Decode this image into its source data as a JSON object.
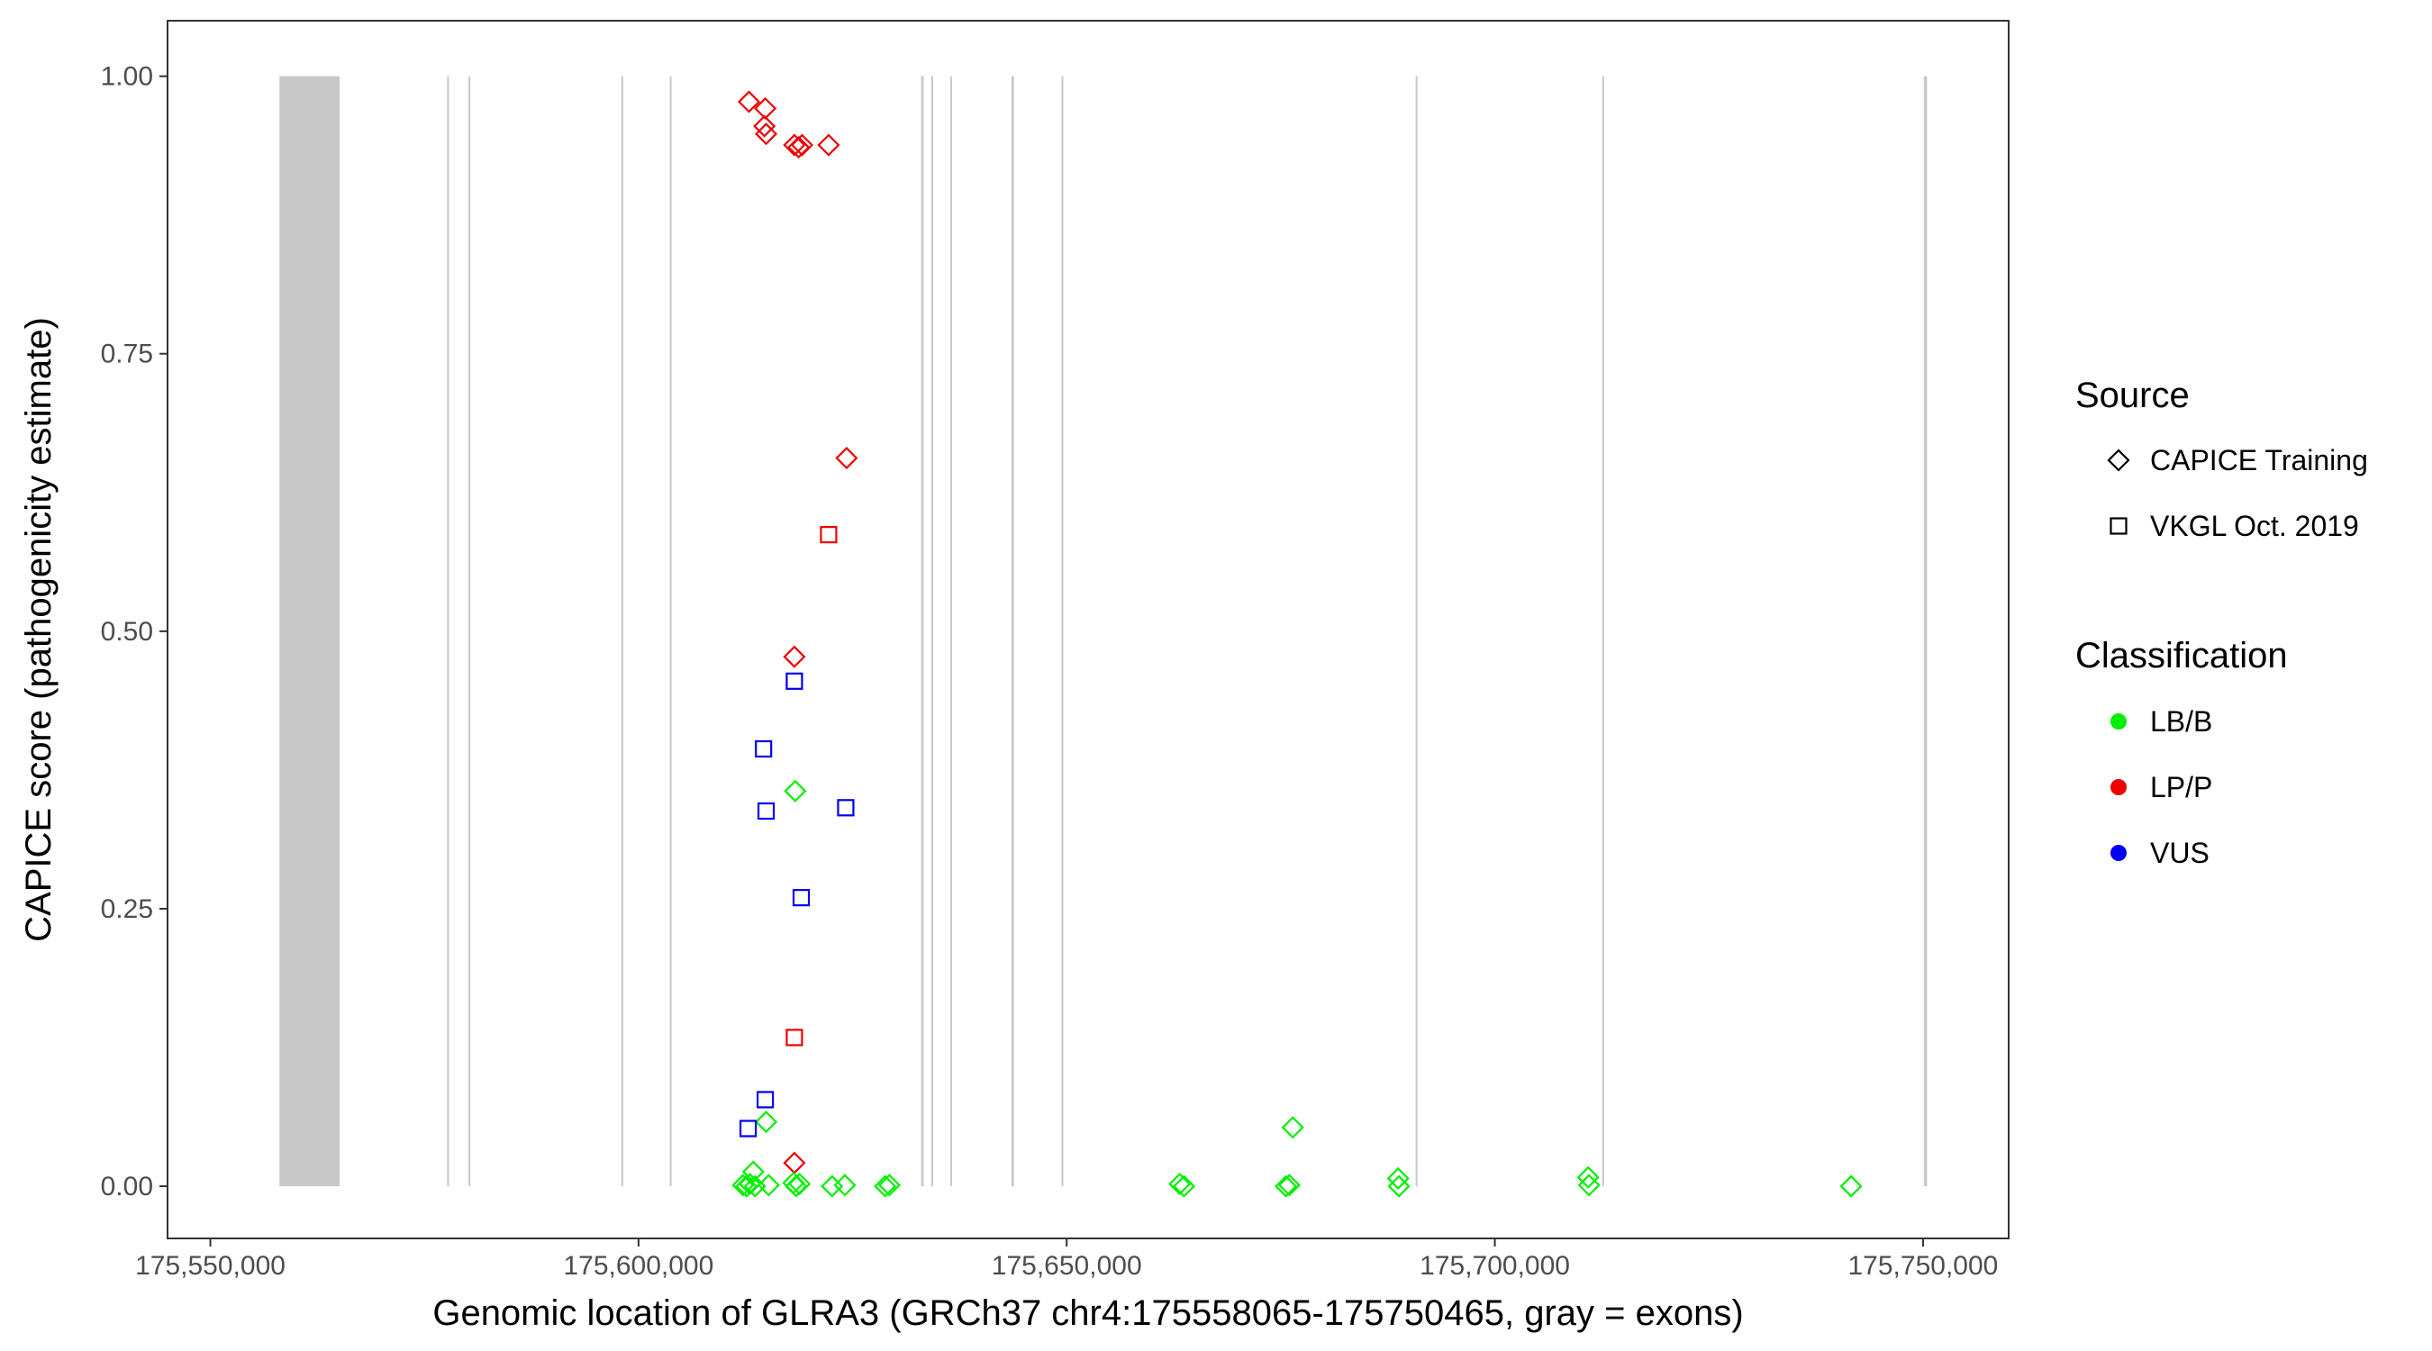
{
  "chart_data": {
    "type": "scatter",
    "title": "",
    "xlabel": "Genomic location of GLRA3 (GRCh37 chr4:175558065-175750465, gray = exons)",
    "ylabel": "CAPICE score (pathogenicity estimate)",
    "xlim": [
      175545000,
      175760000
    ],
    "ylim": [
      -0.047,
      1.05
    ],
    "x_ticks": [
      175550000,
      175600000,
      175650000,
      175700000,
      175750000
    ],
    "x_tick_labels": [
      "175,550,000",
      "175,600,000",
      "175,650,000",
      "175,700,000",
      "175,750,000"
    ],
    "y_ticks": [
      0,
      0.25,
      0.5,
      0.75,
      1
    ],
    "y_tick_labels": [
      "0.00",
      "0.25",
      "0.50",
      "0.75",
      "1.00"
    ],
    "grid": false,
    "exons": [
      {
        "start": 175558065,
        "end": 175565100
      },
      {
        "start": 175577650,
        "end": 175577850
      },
      {
        "start": 175580150,
        "end": 175580350
      },
      {
        "start": 175598000,
        "end": 175598200
      },
      {
        "start": 175603650,
        "end": 175603850
      },
      {
        "start": 175633000,
        "end": 175633300
      },
      {
        "start": 175634200,
        "end": 175634400
      },
      {
        "start": 175636400,
        "end": 175636600
      },
      {
        "start": 175643550,
        "end": 175643850
      },
      {
        "start": 175649400,
        "end": 175649600
      },
      {
        "start": 175690750,
        "end": 175690950
      },
      {
        "start": 175712550,
        "end": 175712750
      },
      {
        "start": 175750100,
        "end": 175750465
      }
    ],
    "legend": {
      "placement": "right",
      "source_title": "Source",
      "source_items": [
        {
          "label": "CAPICE Training",
          "shape": "diamond"
        },
        {
          "label": "VKGL Oct. 2019",
          "shape": "square"
        }
      ],
      "class_title": "Classification",
      "class_items": [
        {
          "label": "LB/B",
          "color": "#00ee00"
        },
        {
          "label": "LP/P",
          "color": "#ee0000"
        },
        {
          "label": "VUS",
          "color": "#0000ee"
        }
      ]
    },
    "series": [
      {
        "source": "CAPICE Training",
        "classification": "LP/P",
        "points": [
          [
            175612900,
            0.977
          ],
          [
            175614800,
            0.971
          ],
          [
            175614700,
            0.955
          ],
          [
            175614900,
            0.948
          ],
          [
            175618200,
            0.938
          ],
          [
            175618700,
            0.936
          ],
          [
            175619100,
            0.938
          ],
          [
            175622200,
            0.938
          ],
          [
            175624300,
            0.656
          ],
          [
            175618200,
            0.477
          ],
          [
            175618200,
            0.021
          ]
        ]
      },
      {
        "source": "CAPICE Training",
        "classification": "LB/B",
        "points": [
          [
            175613400,
            0.013
          ],
          [
            175614900,
            0.058
          ],
          [
            175618300,
            0.356
          ],
          [
            175612200,
            0.001
          ],
          [
            175612600,
            0.0
          ],
          [
            175613000,
            0.002
          ],
          [
            175613600,
            0.0
          ],
          [
            175615200,
            0.001
          ],
          [
            175618100,
            0.003
          ],
          [
            175618400,
            0.0
          ],
          [
            175618800,
            0.002
          ],
          [
            175622600,
            0.0
          ],
          [
            175624100,
            0.001
          ],
          [
            175628800,
            0.0
          ],
          [
            175629300,
            0.001
          ],
          [
            175663200,
            0.002
          ],
          [
            175663700,
            0.0
          ],
          [
            175675600,
            0.0
          ],
          [
            175676000,
            0.001
          ],
          [
            175676400,
            0.053
          ],
          [
            175688700,
            0.007
          ],
          [
            175688800,
            0.0
          ],
          [
            175710900,
            0.008
          ],
          [
            175711000,
            0.001
          ],
          [
            175741600,
            0.0
          ]
        ]
      },
      {
        "source": "VKGL Oct. 2019",
        "classification": "LP/P",
        "points": [
          [
            175622200,
            0.587
          ],
          [
            175618200,
            0.134
          ]
        ]
      },
      {
        "source": "VKGL Oct. 2019",
        "classification": "VUS",
        "points": [
          [
            175618200,
            0.455
          ],
          [
            175614600,
            0.394
          ],
          [
            175614900,
            0.338
          ],
          [
            175624200,
            0.341
          ],
          [
            175619000,
            0.26
          ],
          [
            175614800,
            0.078
          ],
          [
            175612800,
            0.052
          ]
        ]
      }
    ]
  }
}
